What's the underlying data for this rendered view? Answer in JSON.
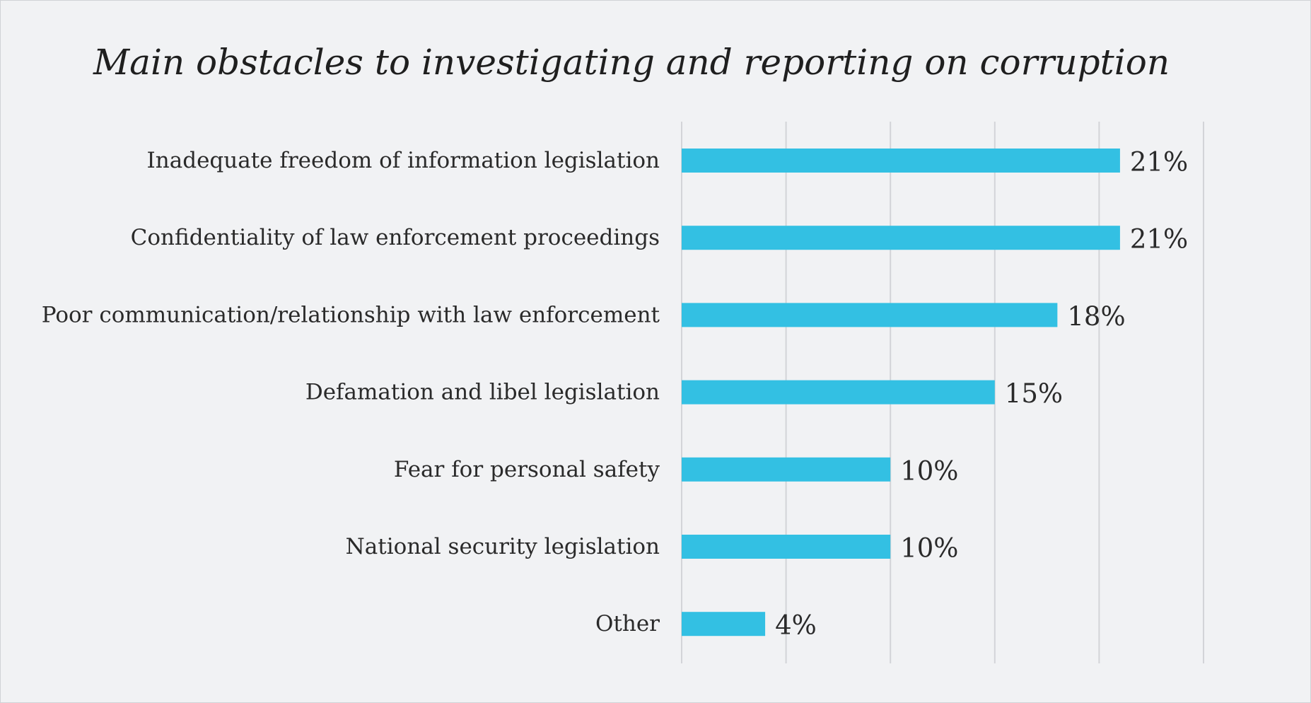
{
  "chart_data": {
    "type": "bar",
    "orientation": "horizontal",
    "title": "Main obstacles to investigating and reporting on corruption",
    "categories": [
      "Inadequate freedom of information legislation",
      "Confidentiality of law enforcement proceedings",
      "Poor communication/relationship with law enforcement",
      "Defamation and libel legislation",
      "Fear for personal safety",
      "National security legislation",
      "Other"
    ],
    "values": [
      21,
      21,
      18,
      15,
      10,
      10,
      4
    ],
    "value_labels": [
      "21%",
      "21%",
      "18%",
      "15%",
      "10%",
      "10%",
      "4%"
    ],
    "xlim": [
      0,
      25
    ],
    "grid": true,
    "bar_color": "#33c0e3",
    "xlabel": "",
    "ylabel": ""
  }
}
